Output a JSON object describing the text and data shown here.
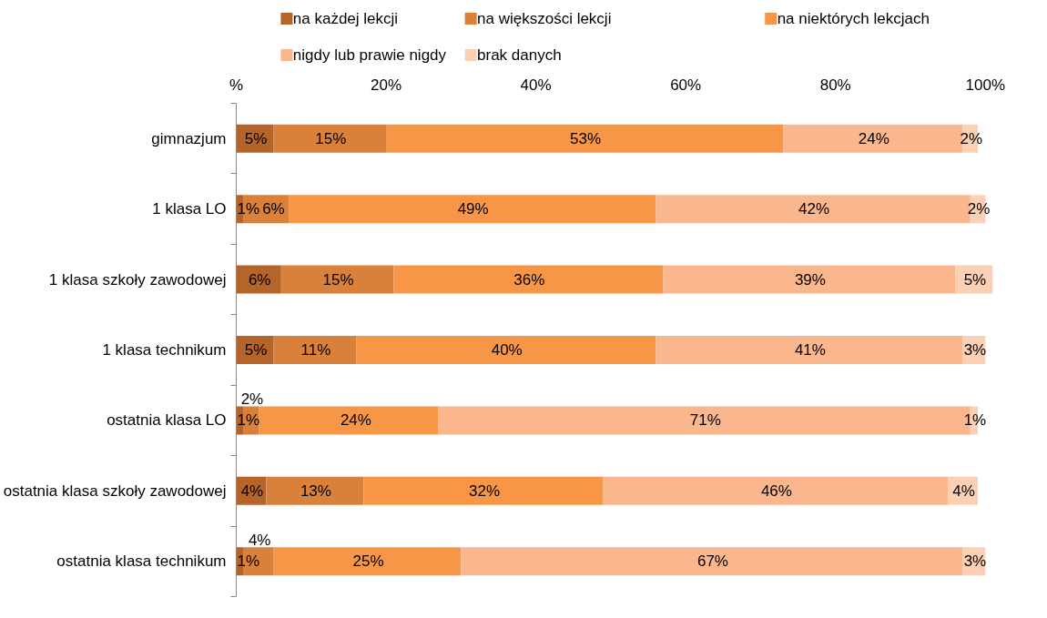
{
  "chart_data": {
    "type": "bar",
    "orientation": "horizontal",
    "stacked": true,
    "legend": "top",
    "grid": false,
    "categories": [
      "gimnazjum",
      "1 klasa LO",
      "1 klasa szkoły zawodowej",
      "1 klasa technikum",
      "ostatnia klasa LO",
      "ostatnia klasa szkoły zawodowej",
      "ostatnia klasa technikum"
    ],
    "xlim": [
      0,
      101
    ],
    "xticks": [
      {
        "value": 0,
        "label": "%"
      },
      {
        "value": 20,
        "label": "20%"
      },
      {
        "value": 40,
        "label": "40%"
      },
      {
        "value": 60,
        "label": "60%"
      },
      {
        "value": 80,
        "label": "80%"
      },
      {
        "value": 100,
        "label": "100%"
      }
    ],
    "series": [
      {
        "name": "na każdej lekcji",
        "color": "#b5652a",
        "values": [
          5,
          1,
          6,
          5,
          1,
          4,
          1
        ],
        "value_labels": [
          "5%",
          "1%",
          "6%",
          "5%",
          "1%",
          "4%",
          "1%"
        ]
      },
      {
        "name": "na większości lekcji",
        "color": "#d9813b",
        "values": [
          15,
          6,
          15,
          11,
          2,
          13,
          4
        ],
        "value_labels": [
          "15%",
          "6%",
          "15%",
          "11%",
          "2%",
          "13%",
          "4%"
        ]
      },
      {
        "name": "na niektórych lekcjach",
        "color": "#f79646",
        "values": [
          53,
          49,
          36,
          40,
          24,
          32,
          25
        ],
        "value_labels": [
          "53%",
          "49%",
          "36%",
          "40%",
          "24%",
          "32%",
          "25%"
        ]
      },
      {
        "name": "nigdy lub prawie nigdy",
        "color": "#fab68c",
        "values": [
          24,
          42,
          39,
          41,
          71,
          46,
          67
        ],
        "value_labels": [
          "24%",
          "42%",
          "39%",
          "41%",
          "71%",
          "46%",
          "67%"
        ]
      },
      {
        "name": "brak danych",
        "color": "#fbd0b5",
        "values": [
          2,
          2,
          5,
          3,
          1,
          4,
          3
        ],
        "value_labels": [
          "2%",
          "2%",
          "5%",
          "3%",
          "1%",
          "4%",
          "3%"
        ]
      }
    ]
  }
}
